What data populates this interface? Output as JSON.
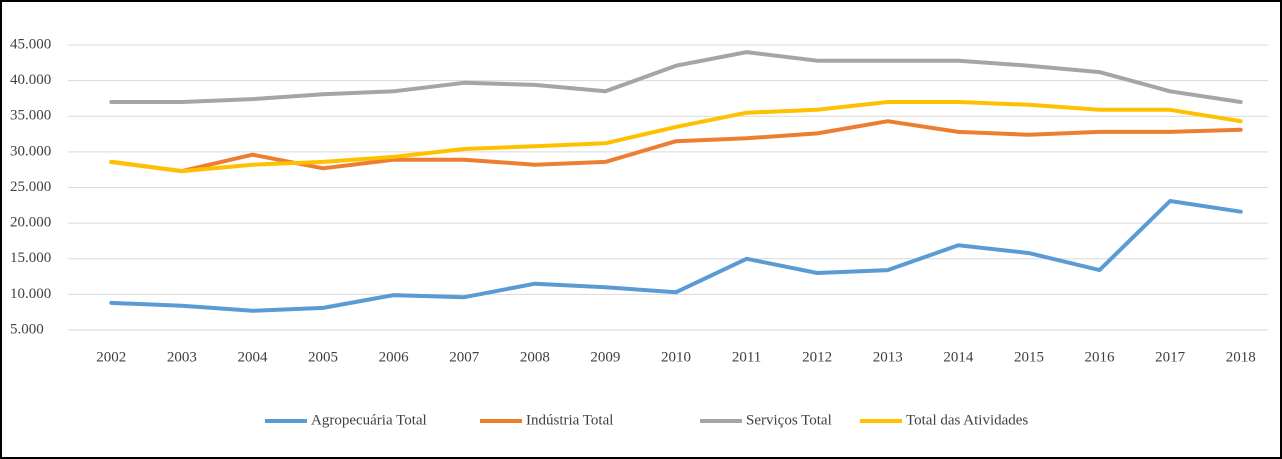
{
  "chart_data": {
    "type": "line",
    "categories": [
      "2002",
      "2003",
      "2004",
      "2005",
      "2006",
      "2007",
      "2008",
      "2009",
      "2010",
      "2011",
      "2012",
      "2013",
      "2014",
      "2015",
      "2016",
      "2017",
      "2018"
    ],
    "series": [
      {
        "name": "Agropecuária Total",
        "color": "#5b9bd5",
        "values": [
          8800,
          8400,
          7700,
          8100,
          9900,
          9600,
          11500,
          11000,
          10300,
          15000,
          13000,
          13400,
          16900,
          15800,
          13400,
          23100,
          21600
        ]
      },
      {
        "name": "Indústria Total",
        "color": "#ed7d31",
        "values": [
          28600,
          27300,
          29600,
          27700,
          28900,
          28900,
          28200,
          28600,
          31500,
          31900,
          32600,
          34300,
          32800,
          32400,
          32800,
          32800,
          33100
        ]
      },
      {
        "name": "Serviços Total",
        "color": "#a5a5a5",
        "values": [
          37000,
          37000,
          37400,
          38100,
          38500,
          39700,
          39400,
          38500,
          42100,
          44000,
          42800,
          42800,
          42800,
          42100,
          41200,
          38500,
          37000
        ]
      },
      {
        "name": "Total das Atividades",
        "color": "#ffc000",
        "values": [
          28600,
          27300,
          28200,
          28600,
          29300,
          30400,
          30800,
          31200,
          33500,
          35500,
          35900,
          37000,
          37000,
          36600,
          35900,
          35900,
          34300
        ]
      }
    ],
    "ylim": [
      5000,
      45000
    ],
    "yticks": [
      {
        "value": 5000,
        "label": "5.000"
      },
      {
        "value": 10000,
        "label": "10.000"
      },
      {
        "value": 15000,
        "label": "15.000"
      },
      {
        "value": 20000,
        "label": "20.000"
      },
      {
        "value": 25000,
        "label": "25.000"
      },
      {
        "value": 30000,
        "label": "30.000"
      },
      {
        "value": 35000,
        "label": "35.000"
      },
      {
        "value": 40000,
        "label": "40.000"
      },
      {
        "value": 45000,
        "label": "45.000"
      }
    ],
    "grid": true,
    "legend": "bottom"
  }
}
